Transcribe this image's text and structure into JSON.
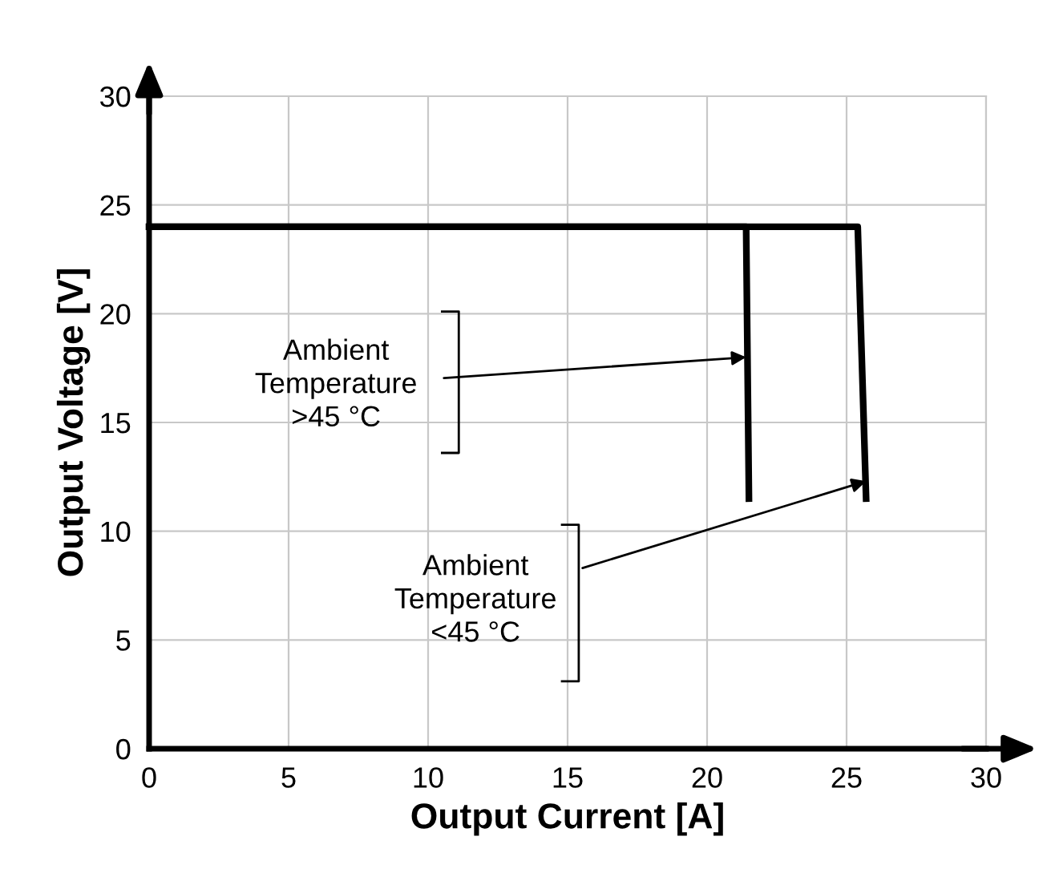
{
  "chart_data": {
    "type": "line",
    "xlabel": "Output Current [A]",
    "ylabel": "Output Voltage [V]",
    "series": [
      {
        "color": "#000000",
        "x": [
          0,
          21.4,
          21.5
        ],
        "values": [
          24,
          24,
          11.5
        ]
      },
      {
        "color": "#000000",
        "x": [
          0,
          25.4,
          25.7
        ],
        "values": [
          24,
          24,
          11.5
        ]
      }
    ],
    "annotations": [
      {
        "text": "Ambient\nTemperature\n>45 °C",
        "x": 21.4,
        "y": 18
      },
      {
        "text": "Ambient\nTemperature\n<45 °C",
        "x": 25.7,
        "y": 12.3
      }
    ],
    "xlim": [
      0,
      30
    ],
    "ylim": [
      0,
      30
    ],
    "xticks": [
      0,
      5,
      10,
      15,
      20,
      25,
      30
    ],
    "yticks": [
      0,
      5,
      10,
      15,
      20,
      25,
      30
    ],
    "grid": true,
    "marker": "none",
    "line_style": "solid"
  }
}
